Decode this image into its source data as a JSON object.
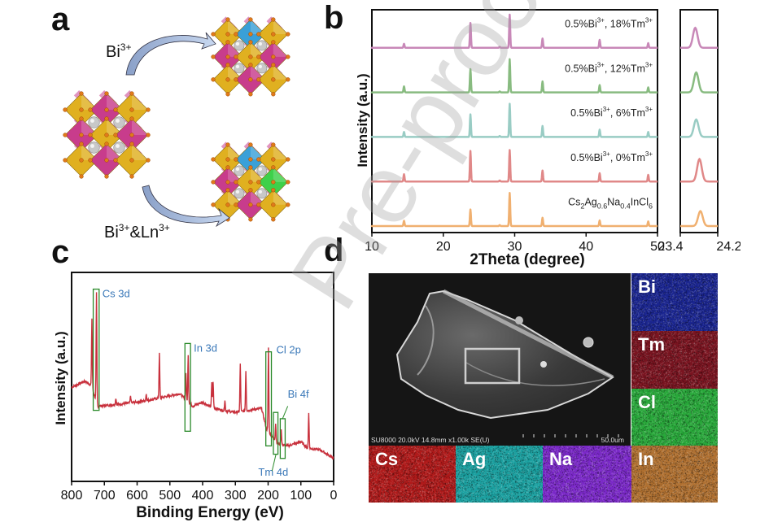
{
  "figure": {
    "panel_labels": {
      "a": "a",
      "b": "b",
      "c": "c",
      "d": "d"
    },
    "watermark": "Pre-proof"
  },
  "panel_a": {
    "arrow_top_label": "Bi",
    "arrow_top_sup": "3+",
    "arrow_bottom_label_1": "Bi",
    "arrow_bottom_sup_1": "3+",
    "arrow_bottom_mid": "&Ln",
    "arrow_bottom_sup_2": "3+",
    "colors": {
      "yellow_octahedra": "#e0b020",
      "magenta_octahedra": "#c83c8c",
      "blue_octahedra": "#3aa0d8",
      "green_octahedra": "#3ed04a",
      "cs_atom": "#c8c8c8",
      "cl_atom": "#e07a1a"
    }
  },
  "chart_data": [
    {
      "type": "line",
      "panel": "b",
      "title": "",
      "xlabel": "2Theta (degree)",
      "ylabel": "Intensity (a.u.)",
      "xlim": [
        10,
        50
      ],
      "xticks": [
        10,
        20,
        30,
        40,
        50
      ],
      "grid": false,
      "peak_positions": [
        14.5,
        23.8,
        27.9,
        29.3,
        33.9,
        41.9,
        48.7
      ],
      "series": [
        {
          "name": "0.5%Bi3+, 18%Tm3+",
          "label_main": "0.5%Bi",
          "label_sup1": "3+",
          "label_mid": ", 18%Tm",
          "label_sup2": "3+",
          "color": "#c888b8",
          "peak_heights": [
            0.12,
            0.75,
            0.03,
            1.0,
            0.28,
            0.24,
            0.14
          ]
        },
        {
          "name": "0.5%Bi3+, 12%Tm3+",
          "label_main": "0.5%Bi",
          "label_sup1": "3+",
          "label_mid": ", 12%Tm",
          "label_sup2": "3+",
          "color": "#88bb80",
          "peak_heights": [
            0.18,
            0.7,
            0.03,
            1.0,
            0.33,
            0.22,
            0.15
          ]
        },
        {
          "name": "0.5%Bi3+, 6%Tm3+",
          "label_main": "0.5%Bi",
          "label_sup1": "3+",
          "label_mid": ", 6%Tm",
          "label_sup2": "3+",
          "color": "#99ccc4",
          "peak_heights": [
            0.15,
            0.68,
            0.03,
            1.0,
            0.33,
            0.22,
            0.15
          ]
        },
        {
          "name": "0.5%Bi3+, 0%Tm3+",
          "label_main": "0.5%Bi",
          "label_sup1": "3+",
          "label_mid": ", 0%Tm",
          "label_sup2": "3+",
          "color": "#e08888",
          "peak_heights": [
            0.22,
            0.92,
            0.03,
            0.95,
            0.33,
            0.25,
            0.2
          ]
        },
        {
          "name": "Cs2Ag0.6Na0.4InCl6",
          "label_formula": [
            "Cs",
            "2",
            "Ag",
            "0.6",
            "Na",
            "0.4",
            "InCl",
            "6"
          ],
          "color": "#f0b070",
          "peak_heights": [
            0.16,
            0.5,
            0.03,
            1.0,
            0.25,
            0.17,
            0.14
          ]
        }
      ]
    },
    {
      "type": "line",
      "panel": "b-inset",
      "xlim": [
        23.4,
        24.2
      ],
      "xticks": [
        23.4,
        24.2
      ],
      "peaks": [
        {
          "series": "0.5%Bi3+, 18%Tm3+",
          "center": 23.72,
          "height": 0.8
        },
        {
          "series": "0.5%Bi3+, 12%Tm3+",
          "center": 23.74,
          "height": 0.8
        },
        {
          "series": "0.5%Bi3+, 6%Tm3+",
          "center": 23.74,
          "height": 0.7
        },
        {
          "series": "0.5%Bi3+, 0%Tm3+",
          "center": 23.81,
          "height": 0.9
        },
        {
          "series": "Cs2Ag0.6Na0.4InCl6",
          "center": 23.83,
          "height": 0.6
        }
      ]
    },
    {
      "type": "line",
      "panel": "c",
      "xlabel": "Binding Energy (eV)",
      "ylabel": "Intensity (a.u.)",
      "xlim": [
        800,
        0
      ],
      "xticks": [
        800,
        700,
        600,
        500,
        400,
        300,
        200,
        100,
        0
      ],
      "grid": false,
      "series_color": "#c8303c",
      "baseline": [
        [
          800,
          0.45
        ],
        [
          760,
          0.48
        ],
        [
          740,
          0.46
        ],
        [
          720,
          0.36
        ],
        [
          650,
          0.37
        ],
        [
          600,
          0.38
        ],
        [
          560,
          0.39
        ],
        [
          470,
          0.42
        ],
        [
          430,
          0.36
        ],
        [
          400,
          0.38
        ],
        [
          380,
          0.36
        ],
        [
          340,
          0.34
        ],
        [
          300,
          0.33
        ],
        [
          220,
          0.35
        ],
        [
          205,
          0.25
        ],
        [
          170,
          0.18
        ],
        [
          140,
          0.17
        ],
        [
          100,
          0.19
        ],
        [
          80,
          0.16
        ],
        [
          40,
          0.15
        ],
        [
          0,
          0.11
        ]
      ],
      "peaks": [
        {
          "x": 738,
          "height": 0.78
        },
        {
          "x": 724,
          "height": 0.9
        },
        {
          "x": 665,
          "height": 0.4
        },
        {
          "x": 620,
          "height": 0.41
        },
        {
          "x": 572,
          "height": 0.42
        },
        {
          "x": 532,
          "height": 0.61
        },
        {
          "x": 451,
          "height": 0.52
        },
        {
          "x": 444,
          "height": 0.61
        },
        {
          "x": 372,
          "height": 0.47
        },
        {
          "x": 368,
          "height": 0.48
        },
        {
          "x": 332,
          "height": 0.39
        },
        {
          "x": 285,
          "height": 0.56
        },
        {
          "x": 268,
          "height": 0.53
        },
        {
          "x": 199,
          "height": 0.64
        },
        {
          "x": 177,
          "height": 0.28
        },
        {
          "x": 160,
          "height": 0.25
        },
        {
          "x": 76,
          "height": 0.33
        }
      ],
      "annotations": [
        {
          "label": "Cs 3d",
          "box_x": [
            734,
            716
          ]
        },
        {
          "label": "In 3d",
          "box_x": [
            454,
            437
          ]
        },
        {
          "label": "Cl 2p",
          "box_x": [
            207,
            190
          ]
        },
        {
          "label": "Tm 4d",
          "box_x": [
            184,
            170
          ]
        },
        {
          "label": "Bi 4f",
          "box_x": [
            163,
            148
          ]
        }
      ],
      "annotation_color": "#3a78b8",
      "box_color": "#2a8a2a"
    }
  ],
  "panel_d": {
    "sem_caption": "SU8000 20.0kV 14.8mm x1.00k SE(U)",
    "scale_bar": "50.0um",
    "eds_maps": [
      {
        "element": "Bi",
        "color": "#1a2590"
      },
      {
        "element": "Tm",
        "color": "#7a1420"
      },
      {
        "element": "Cl",
        "color": "#28a83a"
      },
      {
        "element": "Cs",
        "color": "#b01a1a"
      },
      {
        "element": "Ag",
        "color": "#1aa0a0"
      },
      {
        "element": "Na",
        "color": "#7a28c8"
      },
      {
        "element": "In",
        "color": "#b07030"
      }
    ]
  }
}
